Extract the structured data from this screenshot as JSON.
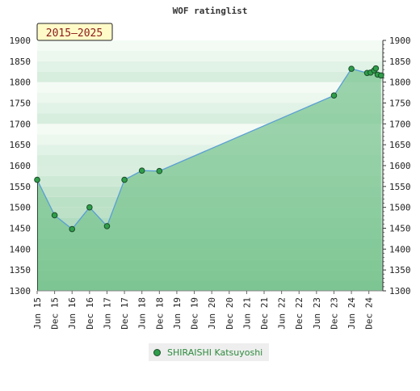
{
  "chart_data": {
    "type": "area",
    "title": "WOF ratinglist",
    "period_badge": "2015–2025",
    "ylim": [
      1300,
      1900
    ],
    "yticks": [
      1300,
      1350,
      1400,
      1450,
      1500,
      1550,
      1600,
      1650,
      1700,
      1750,
      1800,
      1850,
      1900
    ],
    "ytick_labels": [
      "1300",
      "1350",
      "1400",
      "1450",
      "1500",
      "1550",
      "1600",
      "1650",
      "1700",
      "1750",
      "1800",
      "1850",
      "1900"
    ],
    "xtick_labels": [
      "Jun 15",
      "Dec 15",
      "Jun 16",
      "Dec 16",
      "Jun 17",
      "Dec 17",
      "Jun 18",
      "Dec 18",
      "Jun 19",
      "Dec 19",
      "Jun 20",
      "Dec 20",
      "Jun 21",
      "Dec 21",
      "Jun 22",
      "Dec 22",
      "Jun 23",
      "Dec 23",
      "Jun 24",
      "Dec 24"
    ],
    "xtick_positions": [
      0,
      1,
      2,
      3,
      4,
      5,
      6,
      7,
      8,
      9,
      10,
      11,
      12,
      13,
      14,
      15,
      16,
      17,
      18,
      19
    ],
    "xlim": [
      0,
      19.8
    ],
    "grid": true,
    "legend_position": "bottom",
    "series": [
      {
        "name": "SHIRAISHI Katsuyoshi",
        "x": [
          0,
          1,
          2,
          3,
          4,
          5,
          6,
          7,
          17,
          18,
          18.9,
          19.1,
          19.3,
          19.4,
          19.5,
          19.7
        ],
        "y": [
          1566,
          1481,
          1448,
          1500,
          1455,
          1566,
          1588,
          1587,
          1768,
          1832,
          1822,
          1823,
          1828,
          1833,
          1818,
          1816
        ],
        "dot_flags": [
          true,
          true,
          true,
          true,
          true,
          true,
          true,
          true,
          true,
          true,
          true,
          true,
          true,
          true,
          true,
          true
        ]
      }
    ],
    "colors": {
      "fill": "#7cc592",
      "line": "#5a9fd4",
      "marker": "#2f9e4a",
      "marker_edge": "#1b4d2a",
      "badge_bg": "#fffbc8",
      "badge_text": "#8b1a1a",
      "legend_text": "#2e8b3e"
    }
  }
}
